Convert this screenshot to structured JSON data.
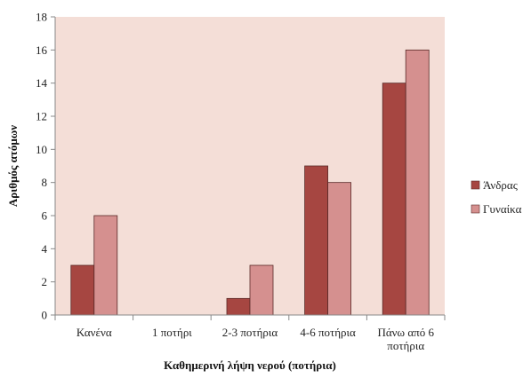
{
  "chart_data": {
    "type": "bar",
    "title": "",
    "xlabel": "Καθημερινή λήψη νερού (ποτήρια)",
    "ylabel": "Αριθμός ατόμων",
    "categories": [
      [
        "Κανένα"
      ],
      [
        "1 ποτήρι"
      ],
      [
        "2-3 ποτήρια"
      ],
      [
        "4-6 ποτήρια"
      ],
      [
        "Πάνω από 6",
        "ποτήρια"
      ]
    ],
    "series": [
      {
        "name": "Άνδρας",
        "values": [
          3,
          0,
          1,
          9,
          14
        ],
        "color": "#a64641"
      },
      {
        "name": "Γυναίκα",
        "values": [
          6,
          0,
          3,
          8,
          16
        ],
        "color": "#d5908f"
      }
    ],
    "ylim": [
      0,
      18
    ],
    "yticks": [
      0,
      2,
      4,
      6,
      8,
      10,
      12,
      14,
      16,
      18
    ],
    "grid": false,
    "plot_background": "#f4ded7",
    "legend_position": "right"
  }
}
